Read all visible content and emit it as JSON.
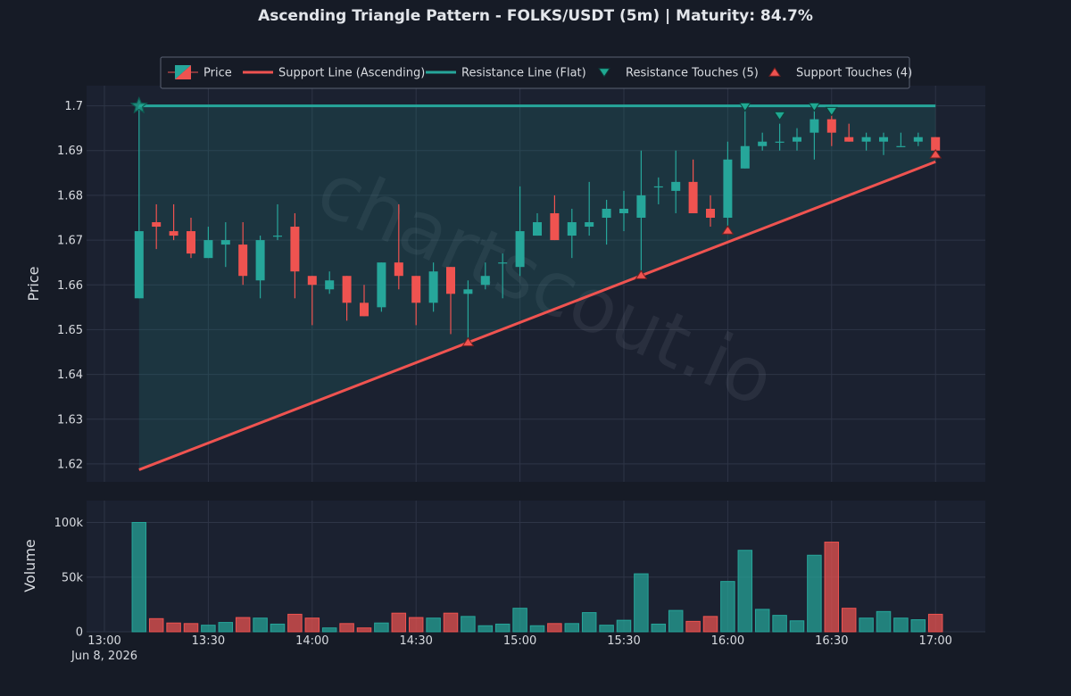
{
  "chart_data": {
    "type": "candlestick",
    "title": "Ascending Triangle Pattern - FOLKS/USDT (5m) | Maturity: 84.7%",
    "watermark": "chartscout.io",
    "colors": {
      "up": "#26a69a",
      "down": "#ef5350",
      "support": "#ef5350",
      "resistance": "#26a69a",
      "background": "#161b26",
      "panel": "#1b2130",
      "grid": "#2e3546"
    },
    "price_panel": {
      "ylabel": "Price",
      "ylim": [
        1.616,
        1.7045
      ],
      "yticks": [
        "1.62",
        "1.63",
        "1.64",
        "1.65",
        "1.66",
        "1.67",
        "1.68",
        "1.69",
        "1.7"
      ]
    },
    "volume_panel": {
      "ylabel": "Volume",
      "ylim": [
        0,
        120000
      ],
      "yticks": [
        {
          "value": 0,
          "label": "0"
        },
        {
          "value": 50000,
          "label": "50k"
        },
        {
          "value": 100000,
          "label": "100k"
        }
      ]
    },
    "x_axis": {
      "start": "13:00",
      "date_label": "Jun 8, 2026",
      "ticks": [
        "13:00",
        "13:30",
        "14:00",
        "14:30",
        "15:00",
        "15:30",
        "16:00",
        "16:30",
        "17:00"
      ]
    },
    "legend": {
      "placement": "top-center",
      "items": [
        {
          "kind": "candle",
          "label": "Price"
        },
        {
          "kind": "support-line",
          "label": "Support Line (Ascending)"
        },
        {
          "kind": "resistance-line",
          "label": "Resistance Line (Flat)"
        },
        {
          "kind": "resistance-touch",
          "label": "Resistance Touches (5)"
        },
        {
          "kind": "support-touch",
          "label": "Support Touches (4)"
        }
      ]
    },
    "candles": [
      {
        "t": "13:10",
        "o": 1.657,
        "h": 1.7,
        "l": 1.657,
        "c": 1.672,
        "v": 100000
      },
      {
        "t": "13:15",
        "o": 1.674,
        "h": 1.678,
        "l": 1.668,
        "c": 1.673,
        "v": 12000
      },
      {
        "t": "13:20",
        "o": 1.672,
        "h": 1.678,
        "l": 1.67,
        "c": 1.671,
        "v": 8000
      },
      {
        "t": "13:25",
        "o": 1.672,
        "h": 1.675,
        "l": 1.666,
        "c": 1.667,
        "v": 7500
      },
      {
        "t": "13:30",
        "o": 1.666,
        "h": 1.673,
        "l": 1.666,
        "c": 1.67,
        "v": 6000
      },
      {
        "t": "13:35",
        "o": 1.669,
        "h": 1.674,
        "l": 1.664,
        "c": 1.67,
        "v": 8500
      },
      {
        "t": "13:40",
        "o": 1.669,
        "h": 1.674,
        "l": 1.66,
        "c": 1.662,
        "v": 13000
      },
      {
        "t": "13:45",
        "o": 1.661,
        "h": 1.671,
        "l": 1.657,
        "c": 1.67,
        "v": 12500
      },
      {
        "t": "13:50",
        "o": 1.671,
        "h": 1.678,
        "l": 1.67,
        "c": 1.671,
        "v": 7000
      },
      {
        "t": "13:55",
        "o": 1.673,
        "h": 1.676,
        "l": 1.657,
        "c": 1.663,
        "v": 16000
      },
      {
        "t": "14:00",
        "o": 1.662,
        "h": 1.662,
        "l": 1.651,
        "c": 1.66,
        "v": 12500
      },
      {
        "t": "14:05",
        "o": 1.659,
        "h": 1.663,
        "l": 1.658,
        "c": 1.661,
        "v": 3500
      },
      {
        "t": "14:10",
        "o": 1.662,
        "h": 1.662,
        "l": 1.652,
        "c": 1.656,
        "v": 7500
      },
      {
        "t": "14:15",
        "o": 1.656,
        "h": 1.66,
        "l": 1.653,
        "c": 1.653,
        "v": 3500
      },
      {
        "t": "14:20",
        "o": 1.655,
        "h": 1.665,
        "l": 1.654,
        "c": 1.665,
        "v": 8000
      },
      {
        "t": "14:25",
        "o": 1.665,
        "h": 1.678,
        "l": 1.659,
        "c": 1.662,
        "v": 17000
      },
      {
        "t": "14:30",
        "o": 1.662,
        "h": 1.662,
        "l": 1.651,
        "c": 1.656,
        "v": 13000
      },
      {
        "t": "14:35",
        "o": 1.656,
        "h": 1.665,
        "l": 1.654,
        "c": 1.663,
        "v": 12500
      },
      {
        "t": "14:40",
        "o": 1.664,
        "h": 1.664,
        "l": 1.649,
        "c": 1.658,
        "v": 17000
      },
      {
        "t": "14:45",
        "o": 1.658,
        "h": 1.661,
        "l": 1.647,
        "c": 1.659,
        "v": 14000
      },
      {
        "t": "14:50",
        "o": 1.66,
        "h": 1.665,
        "l": 1.659,
        "c": 1.662,
        "v": 5500
      },
      {
        "t": "14:55",
        "o": 1.665,
        "h": 1.667,
        "l": 1.657,
        "c": 1.665,
        "v": 7000
      },
      {
        "t": "15:00",
        "o": 1.664,
        "h": 1.682,
        "l": 1.662,
        "c": 1.672,
        "v": 21500
      },
      {
        "t": "15:05",
        "o": 1.671,
        "h": 1.676,
        "l": 1.671,
        "c": 1.674,
        "v": 5500
      },
      {
        "t": "15:10",
        "o": 1.676,
        "h": 1.68,
        "l": 1.67,
        "c": 1.67,
        "v": 7500
      },
      {
        "t": "15:15",
        "o": 1.671,
        "h": 1.677,
        "l": 1.666,
        "c": 1.674,
        "v": 7500
      },
      {
        "t": "15:20",
        "o": 1.673,
        "h": 1.683,
        "l": 1.671,
        "c": 1.674,
        "v": 17500
      },
      {
        "t": "15:25",
        "o": 1.675,
        "h": 1.679,
        "l": 1.669,
        "c": 1.677,
        "v": 6000
      },
      {
        "t": "15:30",
        "o": 1.676,
        "h": 1.681,
        "l": 1.672,
        "c": 1.677,
        "v": 10500
      },
      {
        "t": "15:35",
        "o": 1.675,
        "h": 1.69,
        "l": 1.662,
        "c": 1.68,
        "v": 53000
      },
      {
        "t": "15:40",
        "o": 1.682,
        "h": 1.684,
        "l": 1.678,
        "c": 1.682,
        "v": 7000
      },
      {
        "t": "15:45",
        "o": 1.681,
        "h": 1.69,
        "l": 1.676,
        "c": 1.683,
        "v": 19500
      },
      {
        "t": "15:50",
        "o": 1.683,
        "h": 1.688,
        "l": 1.676,
        "c": 1.676,
        "v": 9500
      },
      {
        "t": "15:55",
        "o": 1.677,
        "h": 1.68,
        "l": 1.673,
        "c": 1.675,
        "v": 14000
      },
      {
        "t": "16:00",
        "o": 1.675,
        "h": 1.692,
        "l": 1.672,
        "c": 1.688,
        "v": 46000
      },
      {
        "t": "16:05",
        "o": 1.686,
        "h": 1.7,
        "l": 1.686,
        "c": 1.691,
        "v": 74500
      },
      {
        "t": "16:10",
        "o": 1.691,
        "h": 1.694,
        "l": 1.69,
        "c": 1.692,
        "v": 20500
      },
      {
        "t": "16:15",
        "o": 1.692,
        "h": 1.696,
        "l": 1.69,
        "c": 1.692,
        "v": 15000
      },
      {
        "t": "16:20",
        "o": 1.692,
        "h": 1.695,
        "l": 1.69,
        "c": 1.693,
        "v": 10000
      },
      {
        "t": "16:25",
        "o": 1.694,
        "h": 1.7,
        "l": 1.688,
        "c": 1.697,
        "v": 70000
      },
      {
        "t": "16:30",
        "o": 1.697,
        "h": 1.699,
        "l": 1.691,
        "c": 1.694,
        "v": 82000
      },
      {
        "t": "16:35",
        "o": 1.693,
        "h": 1.696,
        "l": 1.692,
        "c": 1.692,
        "v": 21500
      },
      {
        "t": "16:40",
        "o": 1.692,
        "h": 1.694,
        "l": 1.69,
        "c": 1.693,
        "v": 12500
      },
      {
        "t": "16:45",
        "o": 1.692,
        "h": 1.694,
        "l": 1.689,
        "c": 1.693,
        "v": 18500
      },
      {
        "t": "16:50",
        "o": 1.691,
        "h": 1.694,
        "l": 1.691,
        "c": 1.691,
        "v": 12500
      },
      {
        "t": "16:55",
        "o": 1.692,
        "h": 1.694,
        "l": 1.691,
        "c": 1.693,
        "v": 11000
      },
      {
        "t": "17:00",
        "o": 1.693,
        "h": 1.693,
        "l": 1.69,
        "c": 1.69,
        "v": 16000
      }
    ],
    "support_line": {
      "start": {
        "t": "13:10",
        "price": 1.6187
      },
      "end": {
        "t": "17:00",
        "price": 1.6875
      }
    },
    "resistance_line": {
      "start": {
        "t": "13:10",
        "price": 1.7
      },
      "end": {
        "t": "17:00",
        "price": 1.7
      }
    },
    "resistance_touches": [
      {
        "t": "16:05",
        "price": 1.6998
      },
      {
        "t": "16:15",
        "price": 1.6978
      },
      {
        "t": "16:25",
        "price": 1.6998
      },
      {
        "t": "16:30",
        "price": 1.6988
      }
    ],
    "support_touches": [
      {
        "t": "14:45",
        "price": 1.6472
      },
      {
        "t": "15:35",
        "price": 1.6622
      },
      {
        "t": "16:00",
        "price": 1.6722
      },
      {
        "t": "17:00",
        "price": 1.6892
      }
    ],
    "start_marker": {
      "t": "13:10",
      "price": 1.7
    }
  }
}
